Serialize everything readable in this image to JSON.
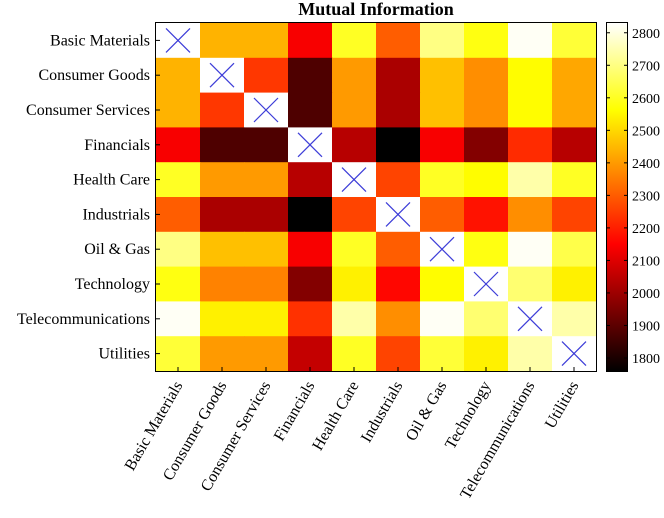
{
  "chart_data": {
    "type": "heatmap",
    "title": "Mutual Information",
    "categories": [
      "Basic Materials",
      "Consumer Goods",
      "Consumer Services",
      "Financials",
      "Health Care",
      "Industrials",
      "Oil & Gas",
      "Technology",
      "Telecommunications",
      "Utilities"
    ],
    "values": [
      [
        null,
        2440,
        2440,
        2140,
        2600,
        2300,
        2700,
        2580,
        2820,
        2620
      ],
      [
        2440,
        null,
        2240,
        1880,
        2400,
        2020,
        2460,
        2380,
        2560,
        2420
      ],
      [
        2440,
        2240,
        null,
        1880,
        2400,
        2020,
        2460,
        2380,
        2560,
        2420
      ],
      [
        2140,
        1880,
        1880,
        null,
        2040,
        1740,
        2140,
        1960,
        2220,
        2040
      ],
      [
        2600,
        2400,
        2400,
        2040,
        null,
        2260,
        2600,
        2560,
        2740,
        2600
      ],
      [
        2300,
        2020,
        2020,
        1740,
        2260,
        null,
        2300,
        2180,
        2380,
        2260
      ],
      [
        2700,
        2460,
        2460,
        2140,
        2600,
        2300,
        null,
        2580,
        2820,
        2640
      ],
      [
        2580,
        2360,
        2360,
        1960,
        2540,
        2160,
        2560,
        null,
        2680,
        2540
      ],
      [
        2820,
        2540,
        2540,
        2230,
        2740,
        2380,
        2820,
        2680,
        null,
        2740
      ],
      [
        2620,
        2400,
        2400,
        2060,
        2600,
        2260,
        2620,
        2540,
        2740,
        null
      ]
    ],
    "diagonal_marker": "cross",
    "colormap": "hot",
    "colorbar": {
      "min": 1760,
      "max": 2830,
      "ticks": [
        1800,
        1900,
        2000,
        2100,
        2200,
        2300,
        2400,
        2500,
        2600,
        2700,
        2800
      ]
    },
    "marker_color": "#3d3dd8"
  }
}
